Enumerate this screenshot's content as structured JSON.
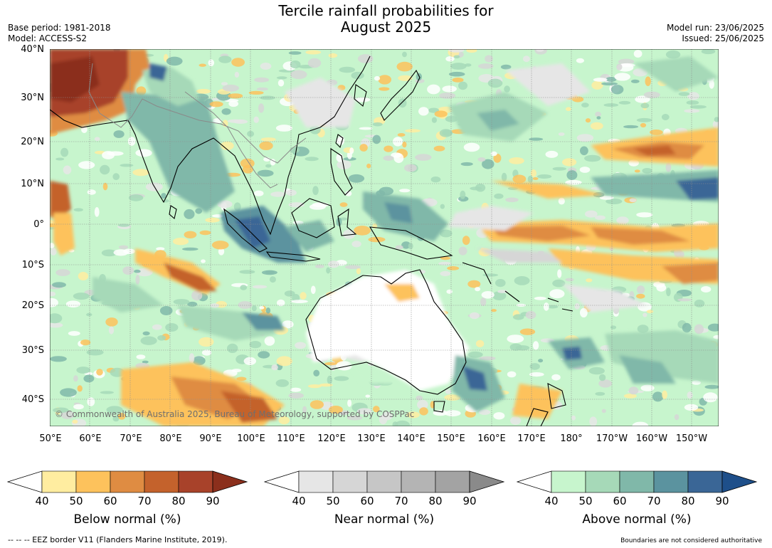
{
  "title_line1": "Tercile rainfall probabilities for",
  "title_line2": "August 2025",
  "base_period": "Base period: 1981-2018",
  "model": "Model: ACCESS-S2",
  "model_run": "Model run: 23/06/2025",
  "issued": "Issued: 25/06/2025",
  "lat_labels": [
    "40°N",
    "30°N",
    "20°N",
    "10°N",
    "0°",
    "10°S",
    "20°S",
    "30°S",
    "40°S"
  ],
  "lon_labels": [
    "50°E",
    "60°E",
    "70°E",
    "80°E",
    "90°E",
    "100°E",
    "110°E",
    "120°E",
    "130°E",
    "140°E",
    "150°E",
    "160°E",
    "170°E",
    "180°",
    "170°W",
    "160°W",
    "150°W"
  ],
  "credit": "© Commonwealth of Australia 2025, Bureau of Meteorology, supported by COSPPac",
  "colorbars": [
    {
      "title": "Below normal (%)",
      "ticks": [
        "40",
        "50",
        "60",
        "70",
        "80",
        "90"
      ],
      "colors": [
        "#ffffff",
        "#ffeda0",
        "#fdc25c",
        "#df8c42",
        "#c4622c",
        "#a8422a",
        "#8b2f1c"
      ]
    },
    {
      "title": "Near normal (%)",
      "ticks": [
        "40",
        "50",
        "60",
        "70",
        "80",
        "90"
      ],
      "colors": [
        "#ffffff",
        "#e6e6e6",
        "#d6d6d6",
        "#c6c6c6",
        "#b4b4b4",
        "#a3a3a3",
        "#8a8a8a"
      ]
    },
    {
      "title": "Above normal (%)",
      "ticks": [
        "40",
        "50",
        "60",
        "70",
        "80",
        "90"
      ],
      "colors": [
        "#ffffff",
        "#c7f5cd",
        "#a6d9b8",
        "#80b8a9",
        "#5b939f",
        "#3a6696",
        "#1e4f8a"
      ]
    }
  ],
  "eez_legend": "--  --  -- EEZ border V11 (Flanders Marine Institute, 2019).",
  "boundaries_note": "Boundaries are not considered authoritative"
}
